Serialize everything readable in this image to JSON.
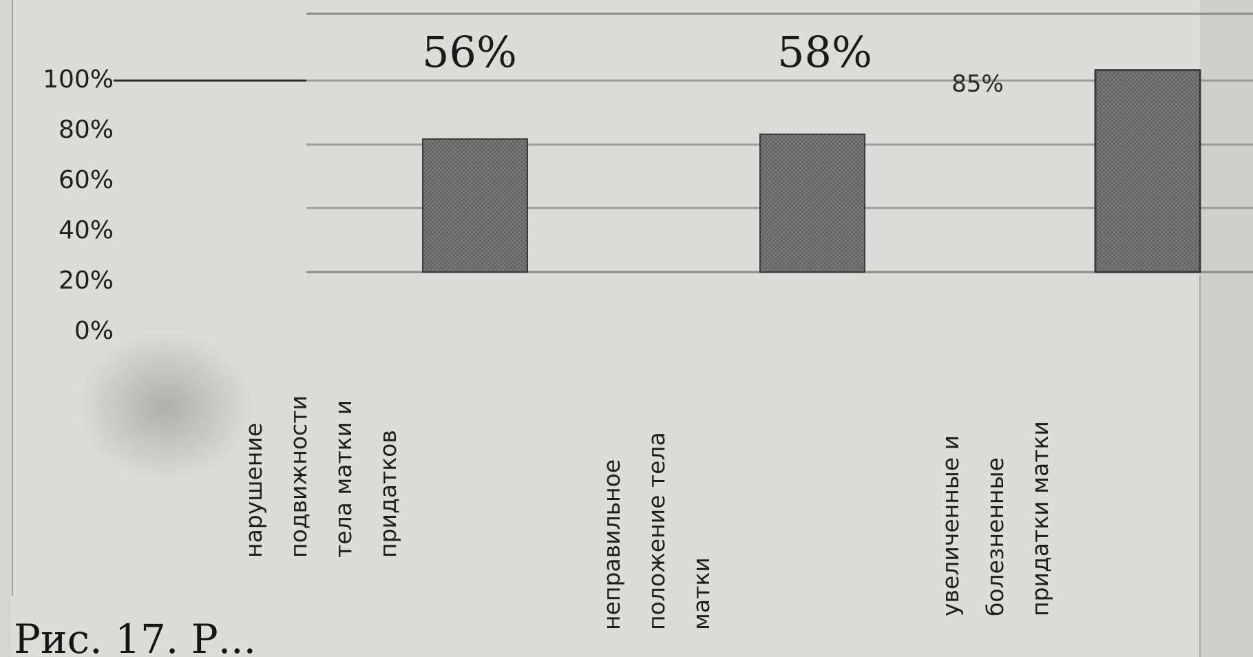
{
  "chart_data": {
    "type": "bar",
    "categories": [
      [
        "нарушение",
        "подвижности",
        "тела матки и",
        "придатков"
      ],
      [
        "неправильное",
        "положение тела",
        "матки"
      ],
      [
        "увеличенные и",
        "болезненные",
        "придатки матки"
      ]
    ],
    "values": [
      56,
      58,
      85
    ],
    "data_labels": [
      "56%",
      "58%",
      "85%"
    ],
    "y_ticks": [
      "100%",
      "80%",
      "60%",
      "40%",
      "20%",
      "0%"
    ],
    "ylim": [
      0,
      100
    ],
    "grid": true,
    "bar_color": "#6f6f6f"
  },
  "caption": "Рис. 17. Р..."
}
